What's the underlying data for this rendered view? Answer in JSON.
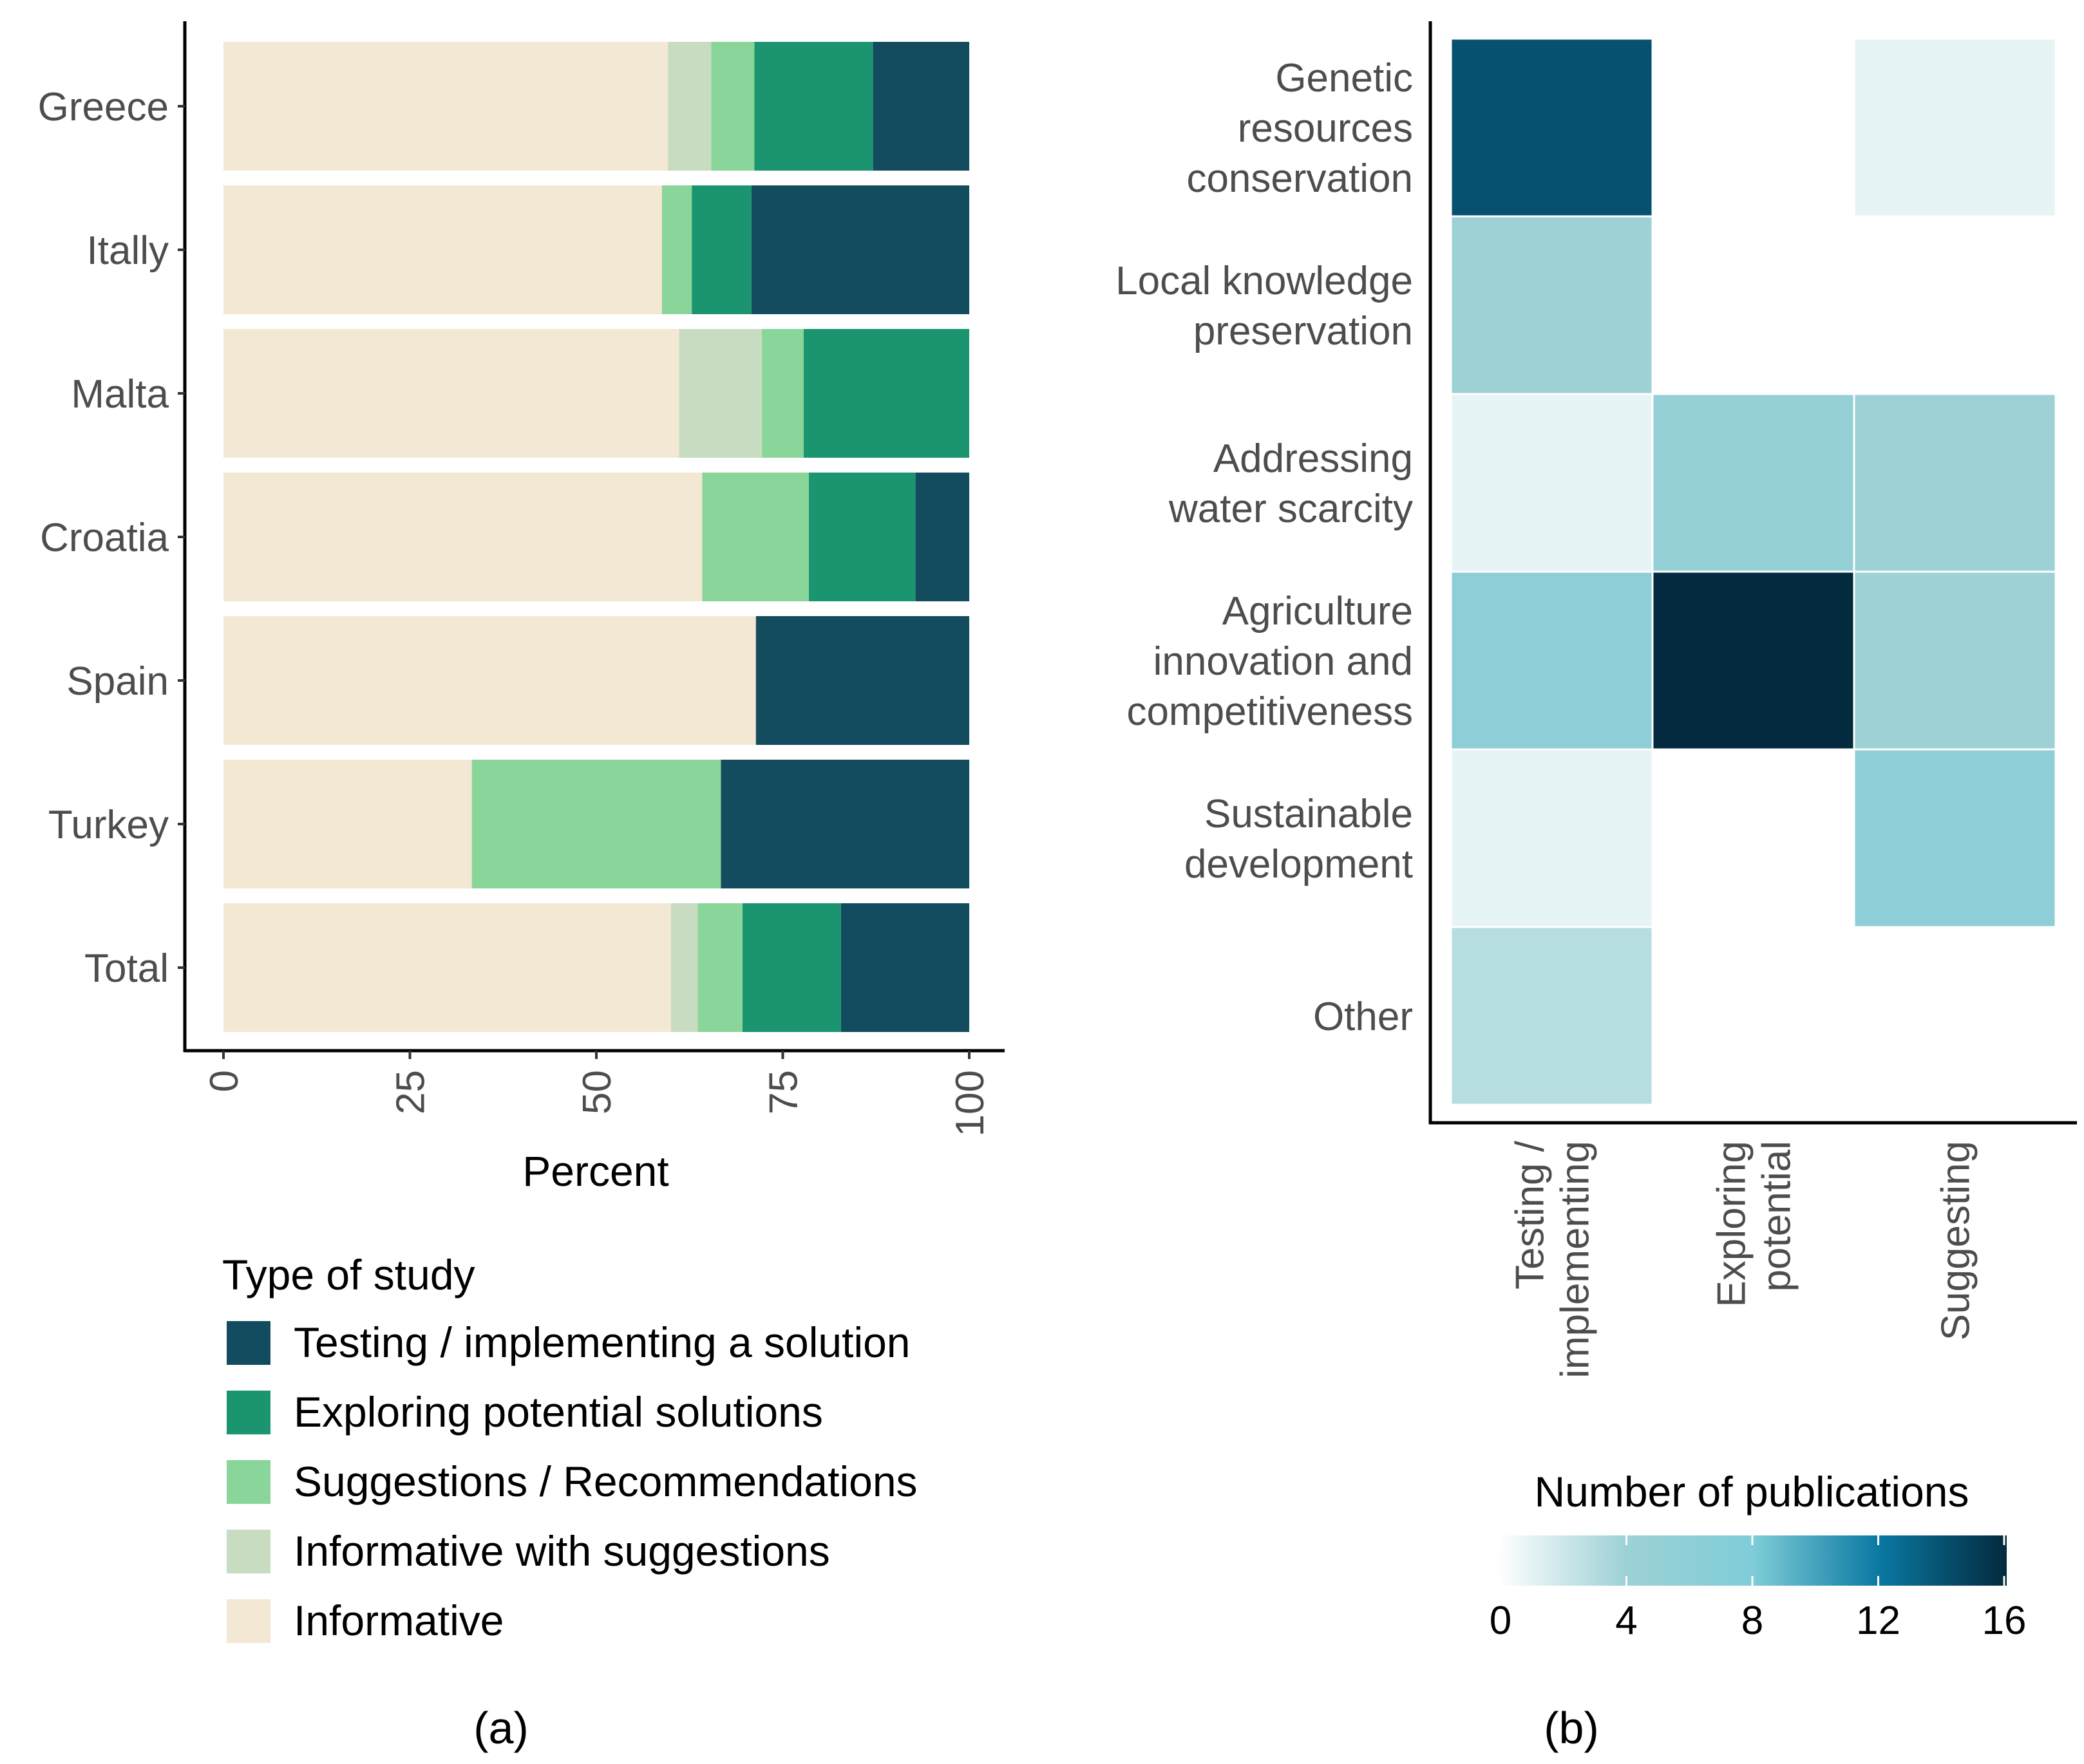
{
  "chart_data": [
    {
      "type": "bar",
      "orientation": "horizontal",
      "stacked": true,
      "panel_label": "(a)",
      "xlabel": "Percent",
      "ylabel": "",
      "xlim": [
        0,
        100
      ],
      "xticks": [
        "0",
        "25",
        "50",
        "75",
        "100"
      ],
      "categories": [
        "Greece",
        "Itally",
        "Malta",
        "Croatia",
        "Spain",
        "Turkey",
        "Total"
      ],
      "legend_title": "Type of study",
      "legend_position": "bottom",
      "series": [
        {
          "name": "Informative",
          "color": "#f3e8d3",
          "values": [
            59.6,
            58.8,
            61.1,
            64.2,
            71.4,
            33.3,
            60.0
          ]
        },
        {
          "name": "Informative with suggestions",
          "color": "#c8dcc2",
          "values": [
            5.8,
            0,
            11.1,
            0,
            0,
            0,
            3.6
          ]
        },
        {
          "name": "Suggestions / Recommendations",
          "color": "#8ad599",
          "values": [
            5.8,
            4.0,
            5.6,
            14.3,
            0,
            33.4,
            6.0
          ]
        },
        {
          "name": "Exploring potential solutions",
          "color": "#1a9570",
          "values": [
            15.9,
            8.0,
            22.2,
            14.3,
            0,
            0,
            13.2
          ]
        },
        {
          "name": "Testing / implementing a solution",
          "color": "#134b5f",
          "values": [
            12.9,
            29.2,
            0,
            7.2,
            28.6,
            33.3,
            17.2
          ]
        }
      ],
      "legend_order": [
        "Testing / implementing a solution",
        "Exploring potential solutions",
        "Suggestions / Recommendations",
        "Informative with suggestions",
        "Informative"
      ]
    },
    {
      "type": "heatmap",
      "panel_label": "(b)",
      "x_categories": [
        "Testing / implementing",
        "Exploring potential",
        "Suggesting"
      ],
      "x_category_lines": [
        [
          "Testing /",
          "implementing"
        ],
        [
          "Exploring",
          "potential"
        ],
        [
          "Suggesting"
        ]
      ],
      "y_categories": [
        "Genetic resources conservation",
        "Local knowledge preservation",
        "Addressing water scarcity",
        "Agriculture innovation and competitiveness",
        "Sustainable development",
        "Other"
      ],
      "y_category_lines": [
        [
          "Genetic",
          "resources",
          "conservation"
        ],
        [
          "Local knowledge",
          "preservation"
        ],
        [
          "Addressing",
          "water scarcity"
        ],
        [
          "Agriculture",
          "innovation and",
          "competitiveness"
        ],
        [
          "Sustainable",
          "development"
        ],
        [
          "Other"
        ]
      ],
      "values": [
        [
          14,
          null,
          1
        ],
        [
          4,
          null,
          null
        ],
        [
          1,
          5,
          4
        ],
        [
          6,
          16,
          4
        ],
        [
          1,
          null,
          6
        ],
        [
          3,
          null,
          null
        ]
      ],
      "colorbar_title": "Number of publications",
      "colorbar_ticks": [
        "0",
        "4",
        "8",
        "12",
        "16"
      ],
      "color_range": [
        0,
        16
      ],
      "colors": [
        "#ffffff",
        "#9dd1d6",
        "#7fcdd8",
        "#0a78a2",
        "#032a3e"
      ]
    }
  ]
}
